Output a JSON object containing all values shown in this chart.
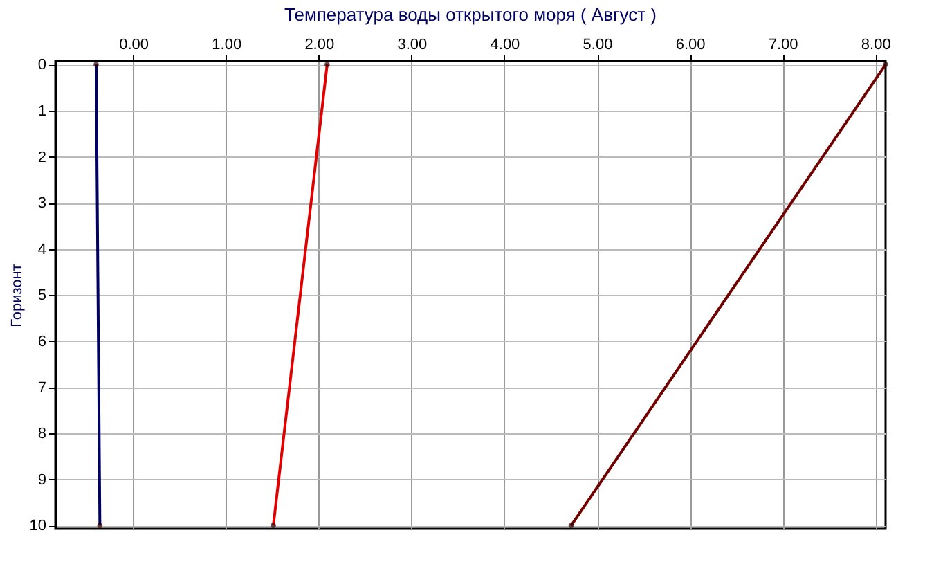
{
  "chart_data": {
    "type": "line",
    "title": "Температура воды открытого моря    ( Август )",
    "ylabel": "Горизонт",
    "series": [
      {
        "color": "#000060",
        "x": [
          -0.4,
          -0.36
        ],
        "values": [
          0,
          10
        ]
      },
      {
        "color": "#e00000",
        "x": [
          2.09,
          1.51
        ],
        "values": [
          0,
          10
        ]
      },
      {
        "color": "#700000",
        "x": [
          8.11,
          4.72
        ],
        "values": [
          0,
          10
        ]
      }
    ],
    "xlim": [
      -0.84,
      8.11
    ],
    "xticks": [
      {
        "value": 0,
        "label": "0.00"
      },
      {
        "value": 1,
        "label": "1.00"
      },
      {
        "value": 2,
        "label": "2.00"
      },
      {
        "value": 3,
        "label": "3.00"
      },
      {
        "value": 4,
        "label": "4.00"
      },
      {
        "value": 5,
        "label": "5.00"
      },
      {
        "value": 6,
        "label": "6.00"
      },
      {
        "value": 7,
        "label": "7.00"
      },
      {
        "value": 8,
        "label": "8.00"
      }
    ],
    "ylim": [
      10.07,
      -0.08
    ],
    "yticks": [
      0,
      1,
      2,
      3,
      4,
      5,
      6,
      7,
      8,
      9,
      10
    ],
    "grid": true,
    "marker": "circle",
    "line_style": "solid",
    "legend": false
  }
}
